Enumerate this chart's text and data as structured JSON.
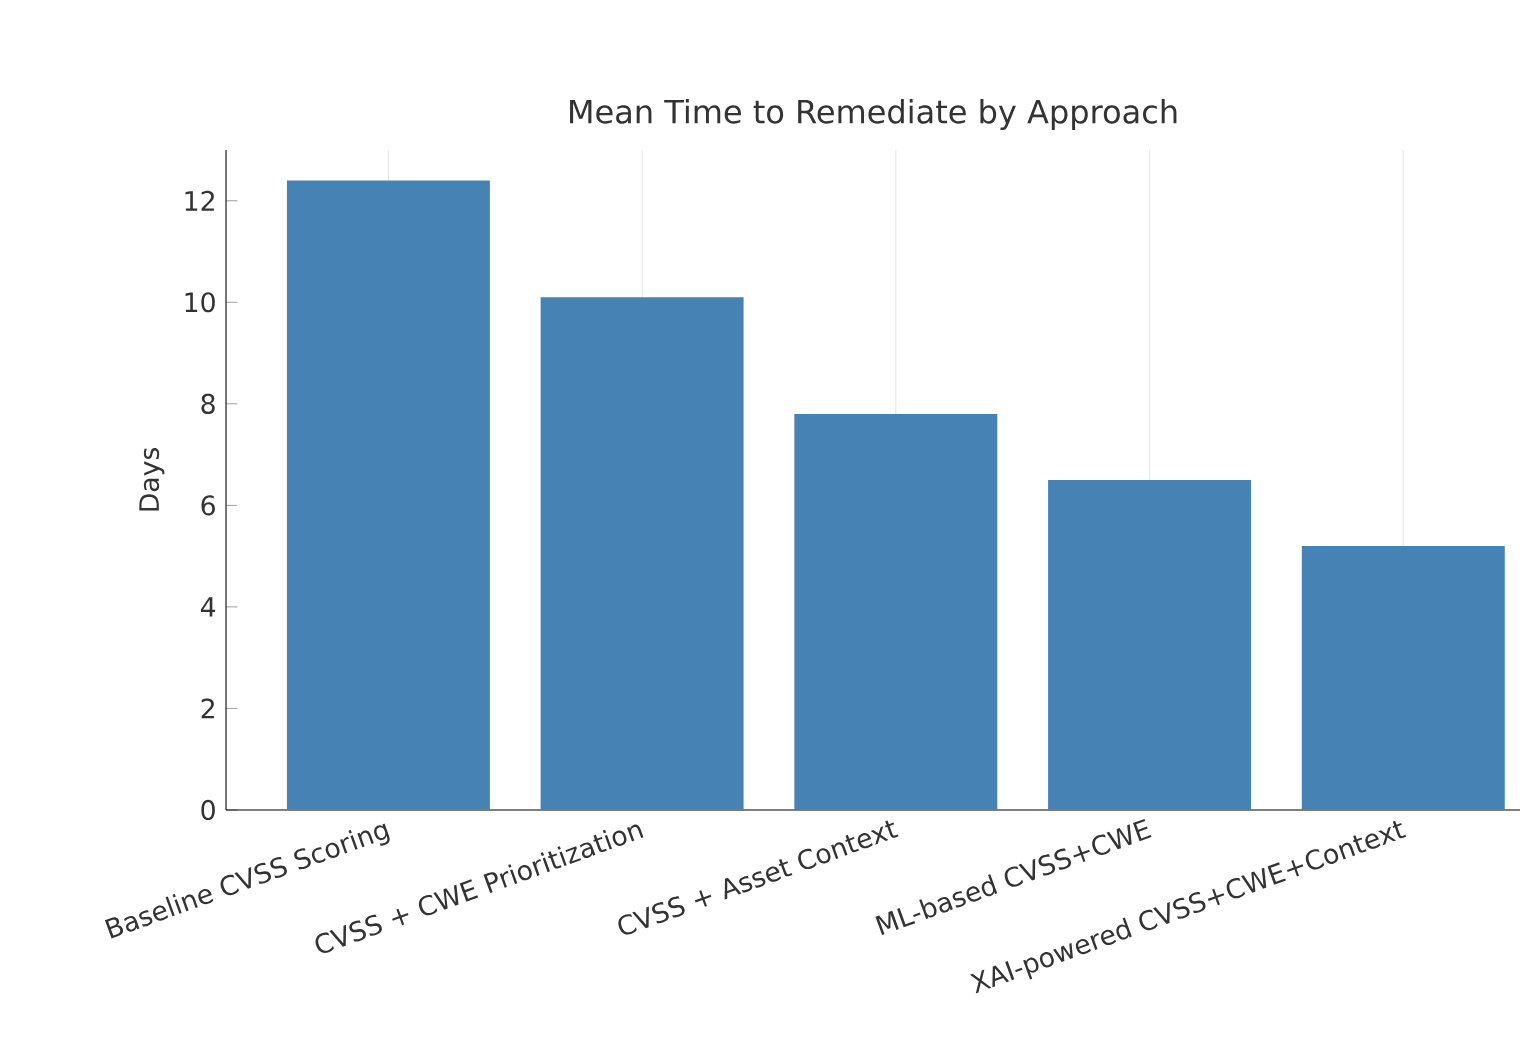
{
  "chart_data": {
    "type": "bar",
    "title": "Mean Time to Remediate by Approach",
    "ylabel": "Days",
    "categories": [
      "Baseline CVSS Scoring",
      "CVSS + CWE Prioritization",
      "CVSS + Asset Context",
      "ML-based CVSS+CWE",
      "XAI-powered CVSS+CWE+Context"
    ],
    "values": [
      12.4,
      10.1,
      7.8,
      6.5,
      5.2
    ],
    "color": "#4682b4",
    "ylim": [
      0,
      13
    ],
    "yticks": [
      0,
      2,
      4,
      6,
      8,
      10,
      12
    ],
    "grid": "x"
  }
}
